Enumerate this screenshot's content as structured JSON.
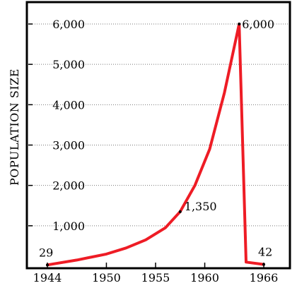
{
  "chart_data": {
    "type": "line",
    "title": "",
    "xlabel": "",
    "ylabel": "POPULATION SIZE",
    "xlim": [
      1944,
      1966
    ],
    "ylim": [
      0,
      6000
    ],
    "grid": true,
    "x_ticks": [
      1944,
      1950,
      1955,
      1960,
      1966
    ],
    "x_tick_labels": [
      "1944",
      "1950",
      "1955",
      "1960",
      "1966"
    ],
    "y_ticks": [
      1000,
      2000,
      3000,
      4000,
      5000,
      6000
    ],
    "y_tick_labels": [
      "1,000",
      "2,000",
      "3,000",
      "4,000",
      "5,000",
      "6,000"
    ],
    "series": [
      {
        "color": "#ee1c25",
        "x": [
          1944,
          1947,
          1950,
          1952,
          1954,
          1956,
          1957.5,
          1959,
          1960.5,
          1962,
          1963.5,
          1964.2,
          1966
        ],
        "values": [
          29,
          150,
          300,
          450,
          650,
          950,
          1350,
          2000,
          2900,
          4300,
          6000,
          100,
          42
        ]
      }
    ],
    "annotations": [
      {
        "x": 1944,
        "y": 29,
        "label": "29"
      },
      {
        "x": 1957.5,
        "y": 1350,
        "label": "1,350"
      },
      {
        "x": 1963.5,
        "y": 6000,
        "label": "6,000"
      },
      {
        "x": 1966,
        "y": 42,
        "label": "42"
      }
    ]
  }
}
